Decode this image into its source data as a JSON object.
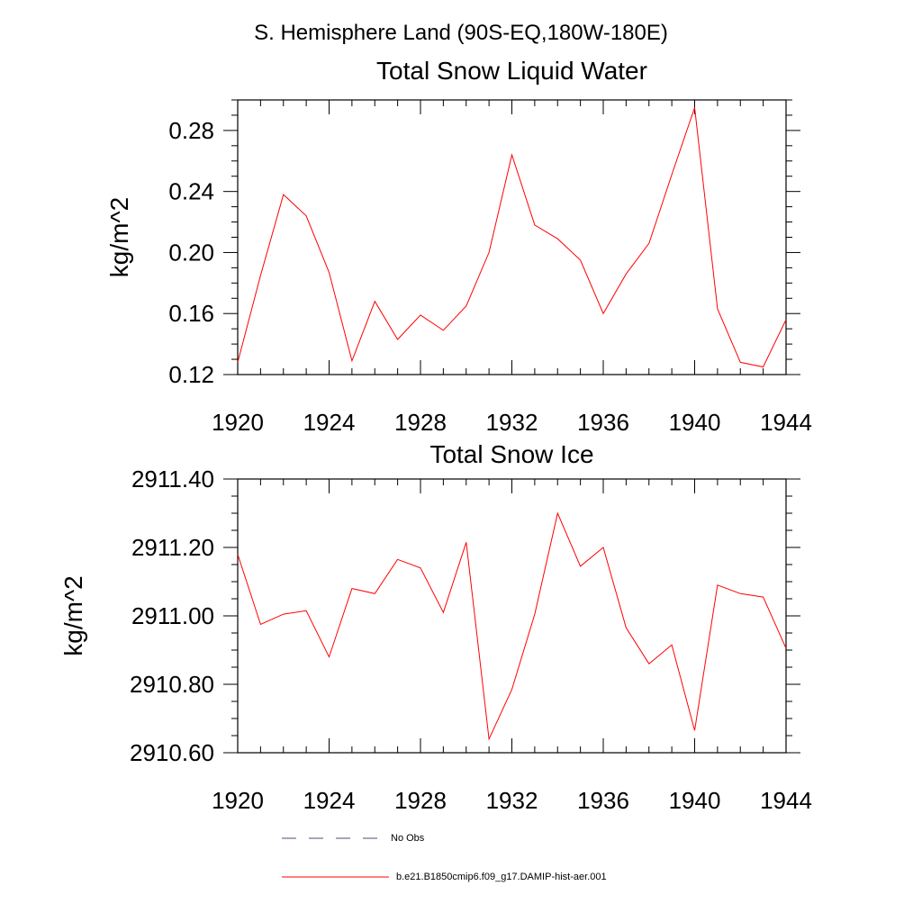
{
  "figure": {
    "main_title": "S. Hemisphere Land (90S-EQ,180W-180E)"
  },
  "chart_data": [
    {
      "type": "line",
      "title": "Total Snow Liquid Water",
      "xlabel": "",
      "ylabel": "kg/m^2",
      "xlim": [
        1920,
        1944
      ],
      "ylim": [
        0.12,
        0.3
      ],
      "x_ticks": [
        1920,
        1924,
        1928,
        1932,
        1936,
        1940,
        1944
      ],
      "x_tick_labels": [
        "1920",
        "1924",
        "1928",
        "1932",
        "1936",
        "1940",
        "1944"
      ],
      "y_ticks": [
        0.12,
        0.16,
        0.2,
        0.24,
        0.28
      ],
      "y_tick_labels": [
        "0.12",
        "0.16",
        "0.20",
        "0.24",
        "0.28"
      ],
      "grid": false,
      "x": [
        1920,
        1921,
        1922,
        1923,
        1924,
        1925,
        1926,
        1927,
        1928,
        1929,
        1930,
        1931,
        1932,
        1933,
        1934,
        1935,
        1936,
        1937,
        1938,
        1939,
        1940,
        1941,
        1942,
        1943,
        1944
      ],
      "series": [
        {
          "name": "b.e21.B1850cmip6.f09_g17.DAMIP-hist-aer.001",
          "color": "#ff0000",
          "values": [
            0.128,
            0.185,
            0.238,
            0.224,
            0.187,
            0.129,
            0.168,
            0.143,
            0.159,
            0.149,
            0.165,
            0.2,
            0.264,
            0.218,
            0.209,
            0.195,
            0.16,
            0.186,
            0.206,
            0.251,
            0.295,
            0.163,
            0.128,
            0.125,
            0.156
          ]
        }
      ]
    },
    {
      "type": "line",
      "title": "Total Snow Ice",
      "xlabel": "",
      "ylabel": "kg/m^2",
      "xlim": [
        1920,
        1944
      ],
      "ylim": [
        2910.6,
        2911.4
      ],
      "x_ticks": [
        1920,
        1924,
        1928,
        1932,
        1936,
        1940,
        1944
      ],
      "x_tick_labels": [
        "1920",
        "1924",
        "1928",
        "1932",
        "1936",
        "1940",
        "1944"
      ],
      "y_ticks": [
        2910.6,
        2910.8,
        2911.0,
        2911.2,
        2911.4
      ],
      "y_tick_labels": [
        "2910.60",
        "2910.80",
        "2911.00",
        "2911.20",
        "2911.40"
      ],
      "grid": false,
      "x": [
        1920,
        1921,
        1922,
        1923,
        1924,
        1925,
        1926,
        1927,
        1928,
        1929,
        1930,
        1931,
        1932,
        1933,
        1934,
        1935,
        1936,
        1937,
        1938,
        1939,
        1940,
        1941,
        1942,
        1943,
        1944
      ],
      "series": [
        {
          "name": "b.e21.B1850cmip6.f09_g17.DAMIP-hist-aer.001",
          "color": "#ff0000",
          "values": [
            2911.18,
            2910.975,
            2911.005,
            2911.015,
            2910.88,
            2911.08,
            2911.065,
            2911.165,
            2911.14,
            2911.01,
            2911.215,
            2910.64,
            2910.785,
            2911.005,
            2911.3,
            2911.145,
            2911.2,
            2910.965,
            2910.86,
            2910.915,
            2910.665,
            2911.09,
            2911.065,
            2911.055,
            2910.905
          ]
        }
      ]
    }
  ],
  "legend": {
    "placement": "bottom",
    "entries": [
      {
        "label": "No Obs",
        "color": "#4a4f7a",
        "style": "dashed"
      },
      {
        "label": "b.e21.B1850cmip6.f09_g17.DAMIP-hist-aer.001",
        "color": "#ff0000",
        "style": "solid"
      }
    ]
  }
}
